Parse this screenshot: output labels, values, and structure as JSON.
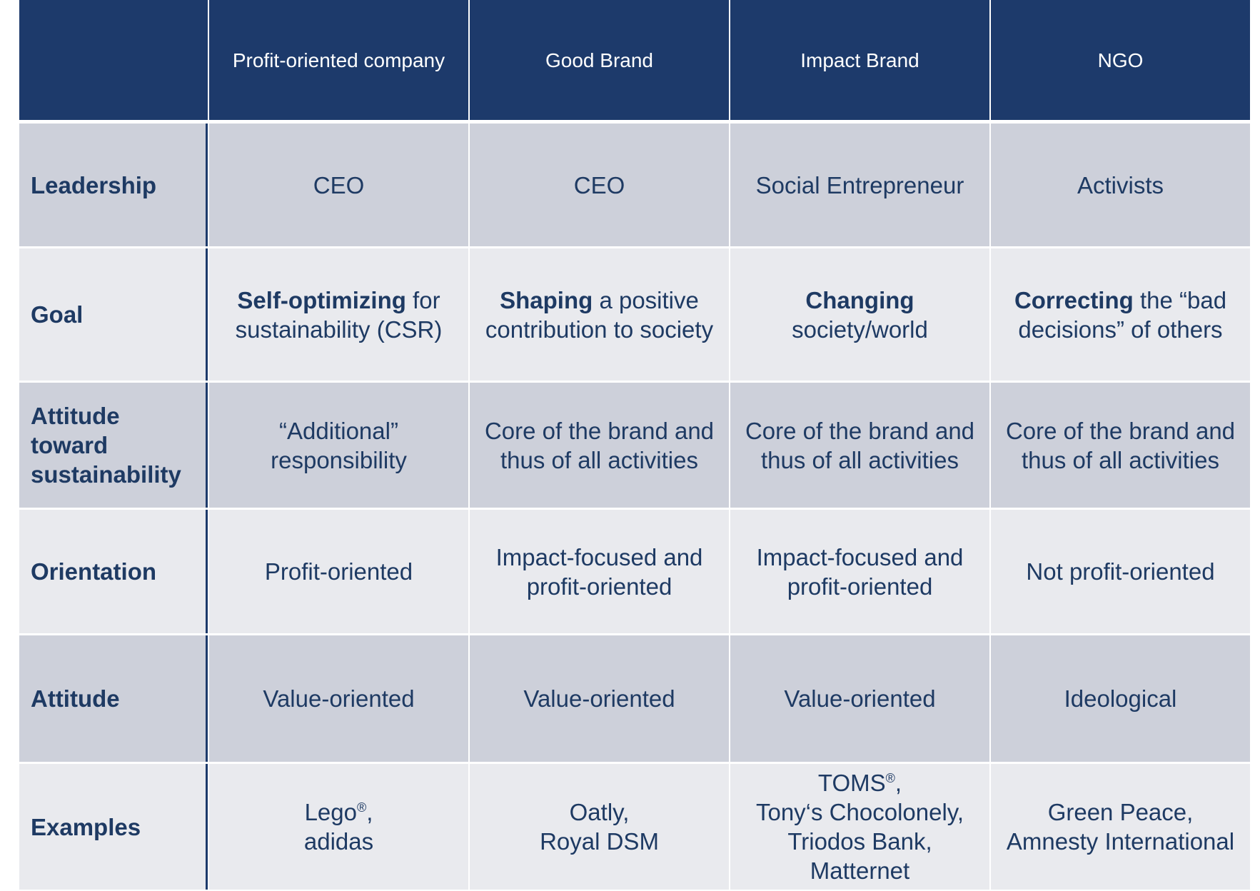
{
  "table": {
    "header": [
      "Profit-oriented company",
      "Good Brand",
      "Impact Brand",
      "NGO"
    ],
    "rows": [
      {
        "label": [
          "Leadership"
        ],
        "cells": [
          [
            [
              "CEO"
            ]
          ],
          [
            [
              "CEO"
            ]
          ],
          [
            [
              "Social Entrepreneur"
            ]
          ],
          [
            [
              "Activists"
            ]
          ]
        ]
      },
      {
        "label": [
          "Goal"
        ],
        "cells": [
          [
            [
              {
                "bold": "Self-optimizing"
              },
              " for"
            ],
            [
              "sustainability (CSR)"
            ]
          ],
          [
            [
              {
                "bold": "Shaping"
              },
              " a positive"
            ],
            [
              "contribution to society"
            ]
          ],
          [
            [
              {
                "bold": "Changing"
              }
            ],
            [
              "society/world"
            ]
          ],
          [
            [
              {
                "bold": "Correcting"
              },
              " the “bad"
            ],
            [
              "decisions” of others"
            ]
          ]
        ]
      },
      {
        "label": [
          "Attitude",
          "toward",
          "sustainability"
        ],
        "cells": [
          [
            [
              "“Additional”"
            ],
            [
              "responsibility"
            ]
          ],
          [
            [
              "Core of the brand and"
            ],
            [
              "thus of all activities"
            ]
          ],
          [
            [
              "Core of the brand and"
            ],
            [
              "thus of all activities"
            ]
          ],
          [
            [
              "Core of the brand and"
            ],
            [
              "thus of all activities"
            ]
          ]
        ]
      },
      {
        "label": [
          "Orientation"
        ],
        "cells": [
          [
            [
              "Profit-oriented"
            ]
          ],
          [
            [
              "Impact-focused and"
            ],
            [
              "profit-oriented"
            ]
          ],
          [
            [
              "Impact-focused and"
            ],
            [
              "profit-oriented"
            ]
          ],
          [
            [
              "Not profit-oriented"
            ]
          ]
        ]
      },
      {
        "label": [
          "Attitude"
        ],
        "cells": [
          [
            [
              "Value-oriented"
            ]
          ],
          [
            [
              "Value-oriented"
            ]
          ],
          [
            [
              "Value-oriented"
            ]
          ],
          [
            [
              "Ideological"
            ]
          ]
        ]
      },
      {
        "label": [
          "Examples"
        ],
        "cells": [
          [
            [
              "Lego",
              {
                "sup": "®"
              },
              ","
            ],
            [
              "adidas"
            ]
          ],
          [
            [
              "Oatly,"
            ],
            [
              "Royal DSM"
            ]
          ],
          [
            [
              "TOMS",
              {
                "sup": "®"
              },
              ","
            ],
            [
              "Tony‘s Chocolonely,"
            ],
            [
              "Triodos Bank,"
            ],
            [
              "Matternet"
            ]
          ],
          [
            [
              "Green Peace,"
            ],
            [
              "Amnesty International"
            ]
          ]
        ]
      }
    ]
  }
}
